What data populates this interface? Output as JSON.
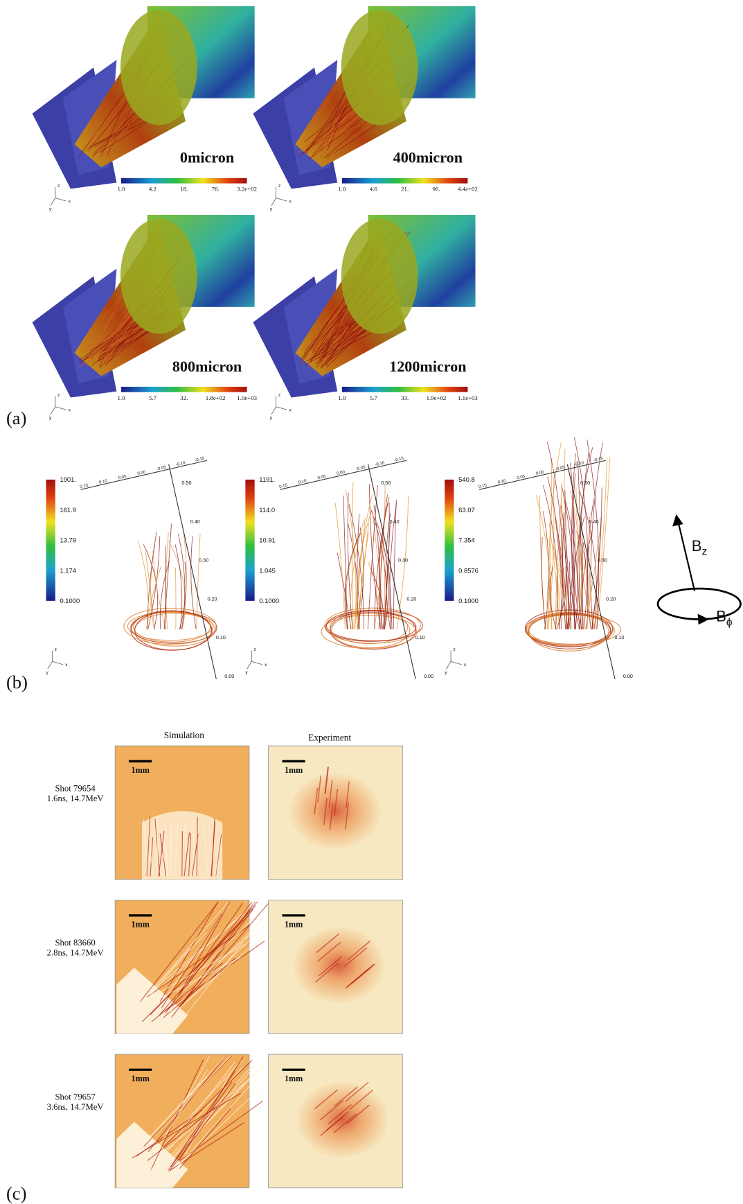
{
  "panel_a": {
    "label": "(a)",
    "axis_letters": [
      "z",
      "x",
      "y"
    ],
    "panels": [
      {
        "title": "0micron",
        "colorbar": [
          "1.0",
          "4.2",
          "18.",
          "76.",
          "3.2e+02"
        ]
      },
      {
        "title": "400micron",
        "colorbar": [
          "1.0",
          "4.6",
          "21.",
          "96.",
          "4.4e+02"
        ]
      },
      {
        "title": "800micron",
        "colorbar": [
          "1.0",
          "5.7",
          "32.",
          "1.8e+02",
          "1.0e+03"
        ]
      },
      {
        "title": "1200micron",
        "colorbar": [
          "1.0",
          "5.7",
          "33.",
          "1.9e+02",
          "1.1e+03"
        ]
      }
    ]
  },
  "panel_b": {
    "label": "(b)",
    "axis_letters": [
      "z",
      "x",
      "y"
    ],
    "vertical_ticks": [
      "0.50",
      "0.40",
      "0.30",
      "0.20",
      "0.10",
      "0.00"
    ],
    "top_ticks": [
      "0.15",
      "0.10",
      "0.05",
      "0.00",
      "-0.05",
      "-0.10",
      "-0.15"
    ],
    "panels": [
      {
        "colorbar": [
          "1901.",
          "161.9",
          "13.79",
          "1.174",
          "0.1000"
        ]
      },
      {
        "colorbar": [
          "1191.",
          "114.0",
          "10.91",
          "1.045",
          "0.1000"
        ]
      },
      {
        "colorbar": [
          "540.8",
          "63.07",
          "7.354",
          "0.8576",
          "0.1000"
        ]
      }
    ],
    "field_labels": [
      {
        "base": "B",
        "sub": "z"
      },
      {
        "base": "B",
        "sub": "ϕ"
      }
    ]
  },
  "panel_c": {
    "label": "(c)",
    "column_headers": [
      "Simulation",
      "Experiment"
    ],
    "scale_bar": "1mm",
    "rows": [
      {
        "shot": "Shot 79654",
        "params": "1.6ns, 14.7MeV"
      },
      {
        "shot": "Shot 83660",
        "params": "2.8ns, 14.7MeV"
      },
      {
        "shot": "Shot 79657",
        "params": "3.6ns, 14.7MeV"
      }
    ]
  }
}
